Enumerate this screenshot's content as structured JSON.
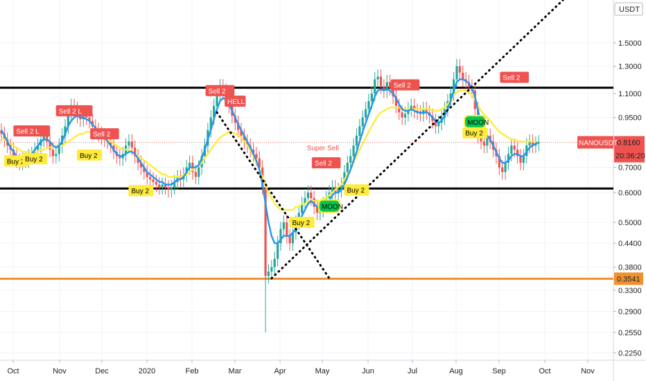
{
  "chart_data": {
    "type": "candlestick",
    "symbol": "NANOUSDT",
    "currency_label": "USDT",
    "price_scale": "log",
    "y_ticks": [
      1.5,
      1.3,
      1.1,
      0.95,
      0.816,
      0.7,
      0.6,
      0.5,
      0.44,
      0.38,
      0.3541,
      0.33,
      0.29,
      0.255,
      0.225
    ],
    "y_tick_labels": [
      "1.5000",
      "1.3000",
      "1.1000",
      "0.9500",
      "0.8160",
      "0.7000",
      "0.6000",
      "0.5000",
      "0.4400",
      "0.3800",
      "0.3541",
      "0.3300",
      "0.2900",
      "0.2550",
      "0.2250"
    ],
    "x_labels": [
      "Oct",
      "Nov",
      "Dec",
      "2020",
      "Feb",
      "Mar",
      "Apr",
      "May",
      "Jun",
      "Jul",
      "Aug",
      "Sep",
      "Oct",
      "Nov"
    ],
    "current_price": "0.8160",
    "countdown": "20:36:20",
    "support_price": "0.3541",
    "horizontal_levels": [
      1.14,
      0.615
    ],
    "close_prices": [
      0.86,
      0.83,
      0.8,
      0.78,
      0.75,
      0.73,
      0.72,
      0.74,
      0.73,
      0.75,
      0.76,
      0.78,
      0.8,
      0.83,
      0.85,
      0.82,
      0.78,
      0.75,
      0.76,
      0.8,
      0.85,
      0.9,
      0.98,
      1.02,
      1.0,
      0.96,
      0.94,
      0.97,
      0.95,
      0.93,
      0.9,
      0.88,
      0.86,
      0.84,
      0.83,
      0.82,
      0.8,
      0.77,
      0.75,
      0.74,
      0.76,
      0.8,
      0.82,
      0.79,
      0.75,
      0.72,
      0.7,
      0.68,
      0.66,
      0.65,
      0.64,
      0.63,
      0.62,
      0.63,
      0.62,
      0.61,
      0.62,
      0.64,
      0.66,
      0.65,
      0.67,
      0.7,
      0.72,
      0.68,
      0.66,
      0.7,
      0.75,
      0.8,
      0.88,
      0.95,
      1.02,
      1.1,
      1.15,
      1.12,
      1.08,
      1.02,
      0.96,
      0.92,
      0.88,
      0.85,
      0.82,
      0.8,
      0.78,
      0.76,
      0.74,
      0.7,
      0.62,
      0.36,
      0.37,
      0.38,
      0.4,
      0.44,
      0.48,
      0.5,
      0.46,
      0.44,
      0.47,
      0.5,
      0.53,
      0.56,
      0.58,
      0.6,
      0.58,
      0.55,
      0.53,
      0.54,
      0.56,
      0.58,
      0.6,
      0.62,
      0.6,
      0.61,
      0.63,
      0.68,
      0.72,
      0.75,
      0.8,
      0.85,
      0.9,
      0.95,
      1.0,
      1.05,
      1.1,
      1.2,
      1.22,
      1.15,
      1.12,
      1.18,
      1.14,
      1.08,
      1.02,
      0.98,
      0.95,
      0.97,
      1.0,
      1.02,
      0.99,
      0.98,
      0.97,
      1.0,
      0.98,
      0.96,
      0.93,
      0.9,
      0.92,
      0.95,
      1.0,
      1.05,
      1.1,
      1.2,
      1.3,
      1.25,
      1.2,
      1.18,
      1.15,
      1.12,
      1.0,
      0.85,
      0.82,
      0.8,
      0.85,
      0.82,
      0.78,
      0.75,
      0.7,
      0.68,
      0.72,
      0.76,
      0.8,
      0.78,
      0.75,
      0.72,
      0.75,
      0.8,
      0.82,
      0.8,
      0.81,
      0.816
    ],
    "ma_fast": [
      0.88,
      0.85,
      0.82,
      0.79,
      0.77,
      0.75,
      0.74,
      0.74,
      0.74,
      0.75,
      0.76,
      0.78,
      0.8,
      0.82,
      0.83,
      0.83,
      0.82,
      0.8,
      0.79,
      0.8,
      0.82,
      0.86,
      0.9,
      0.93,
      0.95,
      0.96,
      0.95,
      0.95,
      0.94,
      0.93,
      0.91,
      0.89,
      0.87,
      0.85,
      0.84,
      0.82,
      0.8,
      0.78,
      0.76,
      0.75,
      0.75,
      0.76,
      0.77,
      0.77,
      0.76,
      0.74,
      0.72,
      0.7,
      0.68,
      0.67,
      0.66,
      0.65,
      0.64,
      0.64,
      0.63,
      0.63,
      0.63,
      0.64,
      0.65,
      0.65,
      0.66,
      0.68,
      0.7,
      0.7,
      0.7,
      0.71,
      0.74,
      0.78,
      0.83,
      0.88,
      0.94,
      1.0,
      1.05,
      1.07,
      1.06,
      1.03,
      0.99,
      0.95,
      0.91,
      0.88,
      0.85,
      0.82,
      0.79,
      0.76,
      0.73,
      0.69,
      0.63,
      0.56,
      0.5,
      0.46,
      0.44,
      0.44,
      0.45,
      0.46,
      0.46,
      0.46,
      0.47,
      0.48,
      0.5,
      0.52,
      0.54,
      0.56,
      0.57,
      0.56,
      0.55,
      0.55,
      0.55,
      0.56,
      0.57,
      0.59,
      0.6,
      0.6,
      0.61,
      0.63,
      0.66,
      0.69,
      0.73,
      0.77,
      0.82,
      0.87,
      0.92,
      0.97,
      1.02,
      1.08,
      1.12,
      1.13,
      1.12,
      1.13,
      1.12,
      1.1,
      1.07,
      1.03,
      1.0,
      0.99,
      0.99,
      1.0,
      0.99,
      0.98,
      0.98,
      0.98,
      0.98,
      0.97,
      0.95,
      0.93,
      0.92,
      0.93,
      0.96,
      1.0,
      1.05,
      1.12,
      1.18,
      1.2,
      1.2,
      1.19,
      1.17,
      1.14,
      1.08,
      0.99,
      0.92,
      0.87,
      0.85,
      0.83,
      0.8,
      0.77,
      0.74,
      0.72,
      0.72,
      0.73,
      0.75,
      0.76,
      0.76,
      0.75,
      0.75,
      0.77,
      0.79,
      0.8,
      0.81,
      0.816
    ],
    "ma_slow": [
      0.84,
      0.83,
      0.82,
      0.81,
      0.8,
      0.79,
      0.78,
      0.77,
      0.77,
      0.77,
      0.77,
      0.77,
      0.77,
      0.78,
      0.78,
      0.79,
      0.79,
      0.79,
      0.8,
      0.8,
      0.8,
      0.81,
      0.82,
      0.83,
      0.84,
      0.85,
      0.86,
      0.86,
      0.87,
      0.87,
      0.87,
      0.86,
      0.86,
      0.85,
      0.84,
      0.83,
      0.82,
      0.81,
      0.8,
      0.79,
      0.78,
      0.78,
      0.78,
      0.77,
      0.76,
      0.75,
      0.74,
      0.73,
      0.72,
      0.71,
      0.7,
      0.69,
      0.68,
      0.67,
      0.67,
      0.66,
      0.66,
      0.66,
      0.66,
      0.66,
      0.67,
      0.67,
      0.68,
      0.69,
      0.7,
      0.71,
      0.72,
      0.74,
      0.76,
      0.78,
      0.8,
      0.82,
      0.84,
      0.85,
      0.86,
      0.87,
      0.87,
      0.86,
      0.85,
      0.84,
      0.82,
      0.8,
      0.78,
      0.75,
      0.72,
      0.69,
      0.66,
      0.63,
      0.6,
      0.58,
      0.56,
      0.55,
      0.54,
      0.54,
      0.54,
      0.54,
      0.54,
      0.55,
      0.55,
      0.56,
      0.56,
      0.57,
      0.57,
      0.57,
      0.57,
      0.57,
      0.58,
      0.58,
      0.59,
      0.6,
      0.61,
      0.62,
      0.63,
      0.65,
      0.67,
      0.69,
      0.72,
      0.75,
      0.78,
      0.81,
      0.84,
      0.87,
      0.9,
      0.93,
      0.96,
      0.98,
      0.99,
      1.0,
      1.01,
      1.01,
      1.01,
      1.01,
      1.0,
      1.0,
      1.0,
      1.0,
      1.0,
      1.0,
      1.0,
      1.0,
      1.0,
      1.0,
      0.99,
      0.99,
      0.99,
      1.0,
      1.01,
      1.03,
      1.06,
      1.09,
      1.11,
      1.12,
      1.12,
      1.12,
      1.11,
      1.09,
      1.06,
      1.02,
      0.99,
      0.97,
      0.95,
      0.93,
      0.91,
      0.89,
      0.87,
      0.86,
      0.85,
      0.84,
      0.83,
      0.83,
      0.82,
      0.82,
      0.82,
      0.82,
      0.82,
      0.82,
      0.82,
      0.82
    ],
    "trendlines": [
      {
        "from_index": 89,
        "from_price": 0.355,
        "to_index": 185,
        "to_price": 1.95
      },
      {
        "from_index": 71,
        "from_price": 0.98,
        "to_index": 108,
        "to_price": 0.355
      }
    ],
    "signals": [
      {
        "label": "Sell 2 L",
        "index": 10,
        "price": 0.875,
        "kind": "sell"
      },
      {
        "label": "Buy 2",
        "index": 5,
        "price": 0.728,
        "kind": "buy"
      },
      {
        "label": "Buy 2",
        "index": 11,
        "price": 0.738,
        "kind": "buy"
      },
      {
        "label": "Sell 2 L",
        "index": 24,
        "price": 0.99,
        "kind": "sell"
      },
      {
        "label": "Sell 2",
        "index": 34,
        "price": 0.86,
        "kind": "sell"
      },
      {
        "label": "Buy 2",
        "index": 29,
        "price": 0.755,
        "kind": "buy"
      },
      {
        "label": "Buy 2",
        "index": 46,
        "price": 0.607,
        "kind": "buy"
      },
      {
        "label": "Sell 2",
        "index": 72,
        "price": 1.12,
        "kind": "sell"
      },
      {
        "label": "HELL",
        "index": 77,
        "price": 1.05,
        "kind": "sell"
      },
      {
        "label": "Super Sell",
        "index": 107,
        "price": 0.79,
        "kind": "text"
      },
      {
        "label": "Sell 2",
        "index": 107,
        "price": 0.72,
        "kind": "sell"
      },
      {
        "label": "Buy 2",
        "index": 117,
        "price": 0.61,
        "kind": "buy"
      },
      {
        "label": "Buy 2",
        "index": 99,
        "price": 0.5,
        "kind": "buy"
      },
      {
        "label": "MOON",
        "index": 108,
        "price": 0.552,
        "kind": "moon"
      },
      {
        "label": "Sell 2",
        "index": 133,
        "price": 1.16,
        "kind": "sell"
      },
      {
        "label": "MOON",
        "index": 156,
        "price": 0.925,
        "kind": "moon"
      },
      {
        "label": "Buy 2",
        "index": 156,
        "price": 0.865,
        "kind": "buy"
      },
      {
        "label": "Sell 2",
        "index": 169,
        "price": 1.215,
        "kind": "sell"
      }
    ]
  }
}
